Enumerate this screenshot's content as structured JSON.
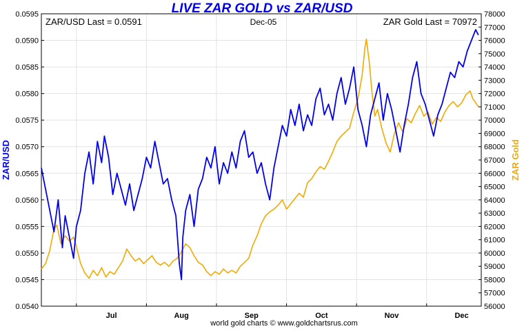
{
  "chart_data": {
    "type": "line",
    "title": "LIVE ZAR GOLD vs ZAR/USD",
    "footer": "world gold charts © www.goldchartsrus.com",
    "annotations": {
      "left": "ZAR/USD Last = 0.0591",
      "center": "Dec-05",
      "right": "ZAR Gold Last = 70972"
    },
    "x_ticks": [
      "Jul",
      "Aug",
      "Sep",
      "Oct",
      "Nov",
      "Dec"
    ],
    "x_tick_pos": [
      0.5,
      1.5,
      2.5,
      3.5,
      4.5,
      5.5
    ],
    "x_range": [
      -0.5,
      5.78
    ],
    "left_axis": {
      "label": "ZAR/USD",
      "color": "#0000ee",
      "range": [
        0.054,
        0.0595
      ],
      "ticks": [
        "0.0540",
        "0.0545",
        "0.0550",
        "0.0555",
        "0.0560",
        "0.0565",
        "0.0570",
        "0.0575",
        "0.0580",
        "0.0585",
        "0.0590",
        "0.0595"
      ]
    },
    "right_axis": {
      "label": "ZAR Gold",
      "color": "#f5a800",
      "range": [
        56000,
        78000
      ],
      "ticks": [
        "56000",
        "57000",
        "58000",
        "59000",
        "60000",
        "61000",
        "62000",
        "63000",
        "64000",
        "65000",
        "66000",
        "67000",
        "68000",
        "69000",
        "70000",
        "71000",
        "72000",
        "73000",
        "74000",
        "75000",
        "76000",
        "77000",
        "78000"
      ]
    },
    "series": [
      {
        "name": "ZAR/USD",
        "axis": "left",
        "color": "#0000ee",
        "points": [
          [
            -0.5,
            0.0566
          ],
          [
            -0.44,
            0.0562
          ],
          [
            -0.38,
            0.0558
          ],
          [
            -0.32,
            0.0554
          ],
          [
            -0.26,
            0.056
          ],
          [
            -0.2,
            0.0551
          ],
          [
            -0.16,
            0.0557
          ],
          [
            -0.1,
            0.0553
          ],
          [
            -0.04,
            0.0549
          ],
          [
            0.0,
            0.0555
          ],
          [
            0.06,
            0.0558
          ],
          [
            0.12,
            0.0565
          ],
          [
            0.18,
            0.0569
          ],
          [
            0.24,
            0.0563
          ],
          [
            0.3,
            0.0571
          ],
          [
            0.36,
            0.0567
          ],
          [
            0.4,
            0.0572
          ],
          [
            0.46,
            0.0568
          ],
          [
            0.52,
            0.0561
          ],
          [
            0.58,
            0.0565
          ],
          [
            0.64,
            0.0562
          ],
          [
            0.7,
            0.0559
          ],
          [
            0.76,
            0.0563
          ],
          [
            0.82,
            0.0558
          ],
          [
            0.88,
            0.0561
          ],
          [
            0.94,
            0.0564
          ],
          [
            1.0,
            0.0568
          ],
          [
            1.06,
            0.0566
          ],
          [
            1.12,
            0.0571
          ],
          [
            1.18,
            0.0567
          ],
          [
            1.24,
            0.0563
          ],
          [
            1.3,
            0.0564
          ],
          [
            1.36,
            0.056
          ],
          [
            1.42,
            0.0557
          ],
          [
            1.47,
            0.0548
          ],
          [
            1.5,
            0.0545
          ],
          [
            1.52,
            0.0553
          ],
          [
            1.56,
            0.0558
          ],
          [
            1.62,
            0.0561
          ],
          [
            1.68,
            0.0555
          ],
          [
            1.74,
            0.0562
          ],
          [
            1.8,
            0.0564
          ],
          [
            1.86,
            0.0568
          ],
          [
            1.92,
            0.0566
          ],
          [
            1.98,
            0.057
          ],
          [
            2.04,
            0.0563
          ],
          [
            2.1,
            0.0567
          ],
          [
            2.16,
            0.0565
          ],
          [
            2.22,
            0.0569
          ],
          [
            2.28,
            0.0566
          ],
          [
            2.34,
            0.0571
          ],
          [
            2.4,
            0.0573
          ],
          [
            2.46,
            0.0568
          ],
          [
            2.52,
            0.0569
          ],
          [
            2.58,
            0.0565
          ],
          [
            2.64,
            0.0567
          ],
          [
            2.7,
            0.0563
          ],
          [
            2.76,
            0.056
          ],
          [
            2.82,
            0.0566
          ],
          [
            2.88,
            0.057
          ],
          [
            2.94,
            0.0574
          ],
          [
            3.0,
            0.0572
          ],
          [
            3.06,
            0.0577
          ],
          [
            3.12,
            0.0574
          ],
          [
            3.18,
            0.0578
          ],
          [
            3.24,
            0.0573
          ],
          [
            3.3,
            0.0576
          ],
          [
            3.36,
            0.0574
          ],
          [
            3.42,
            0.0579
          ],
          [
            3.48,
            0.0581
          ],
          [
            3.54,
            0.0576
          ],
          [
            3.6,
            0.0578
          ],
          [
            3.66,
            0.0575
          ],
          [
            3.72,
            0.058
          ],
          [
            3.78,
            0.0583
          ],
          [
            3.84,
            0.0578
          ],
          [
            3.9,
            0.0581
          ],
          [
            3.96,
            0.0585
          ],
          [
            4.02,
            0.0577
          ],
          [
            4.08,
            0.0574
          ],
          [
            4.14,
            0.057
          ],
          [
            4.2,
            0.0576
          ],
          [
            4.26,
            0.0579
          ],
          [
            4.32,
            0.0582
          ],
          [
            4.38,
            0.0575
          ],
          [
            4.44,
            0.058
          ],
          [
            4.5,
            0.0577
          ],
          [
            4.56,
            0.0573
          ],
          [
            4.62,
            0.0569
          ],
          [
            4.68,
            0.0574
          ],
          [
            4.74,
            0.0578
          ],
          [
            4.8,
            0.0583
          ],
          [
            4.86,
            0.0586
          ],
          [
            4.92,
            0.058
          ],
          [
            4.98,
            0.0578
          ],
          [
            5.04,
            0.0575
          ],
          [
            5.1,
            0.0572
          ],
          [
            5.16,
            0.0576
          ],
          [
            5.22,
            0.0578
          ],
          [
            5.28,
            0.0581
          ],
          [
            5.34,
            0.0584
          ],
          [
            5.4,
            0.0583
          ],
          [
            5.46,
            0.0586
          ],
          [
            5.52,
            0.0585
          ],
          [
            5.58,
            0.0588
          ],
          [
            5.64,
            0.059
          ],
          [
            5.7,
            0.0592
          ],
          [
            5.74,
            0.0591
          ]
        ]
      },
      {
        "name": "ZAR Gold",
        "axis": "right",
        "color": "#f5a800",
        "points": [
          [
            -0.5,
            58800
          ],
          [
            -0.44,
            59200
          ],
          [
            -0.38,
            60200
          ],
          [
            -0.32,
            61800
          ],
          [
            -0.28,
            62100
          ],
          [
            -0.22,
            60700
          ],
          [
            -0.16,
            61300
          ],
          [
            -0.1,
            60900
          ],
          [
            -0.04,
            61200
          ],
          [
            0.0,
            60500
          ],
          [
            0.06,
            59200
          ],
          [
            0.12,
            58500
          ],
          [
            0.18,
            58100
          ],
          [
            0.24,
            58700
          ],
          [
            0.3,
            58300
          ],
          [
            0.36,
            58900
          ],
          [
            0.42,
            58200
          ],
          [
            0.48,
            58600
          ],
          [
            0.54,
            58400
          ],
          [
            0.6,
            58900
          ],
          [
            0.66,
            59400
          ],
          [
            0.72,
            60300
          ],
          [
            0.78,
            59800
          ],
          [
            0.84,
            59400
          ],
          [
            0.9,
            59600
          ],
          [
            0.96,
            59200
          ],
          [
            1.02,
            59500
          ],
          [
            1.08,
            59800
          ],
          [
            1.14,
            59300
          ],
          [
            1.2,
            59100
          ],
          [
            1.26,
            59300
          ],
          [
            1.32,
            59000
          ],
          [
            1.38,
            59400
          ],
          [
            1.44,
            59600
          ],
          [
            1.5,
            60100
          ],
          [
            1.56,
            60700
          ],
          [
            1.62,
            60400
          ],
          [
            1.68,
            59800
          ],
          [
            1.74,
            59300
          ],
          [
            1.8,
            59100
          ],
          [
            1.86,
            58600
          ],
          [
            1.92,
            58300
          ],
          [
            1.98,
            58600
          ],
          [
            2.04,
            58400
          ],
          [
            2.1,
            58800
          ],
          [
            2.16,
            58500
          ],
          [
            2.22,
            58700
          ],
          [
            2.28,
            58500
          ],
          [
            2.34,
            59000
          ],
          [
            2.4,
            59300
          ],
          [
            2.46,
            59600
          ],
          [
            2.52,
            60600
          ],
          [
            2.58,
            61300
          ],
          [
            2.64,
            62200
          ],
          [
            2.7,
            62800
          ],
          [
            2.76,
            63100
          ],
          [
            2.82,
            63300
          ],
          [
            2.88,
            63600
          ],
          [
            2.94,
            64000
          ],
          [
            3.0,
            63300
          ],
          [
            3.06,
            63700
          ],
          [
            3.12,
            64100
          ],
          [
            3.18,
            64500
          ],
          [
            3.24,
            64200
          ],
          [
            3.3,
            65300
          ],
          [
            3.36,
            65600
          ],
          [
            3.42,
            66100
          ],
          [
            3.48,
            66500
          ],
          [
            3.54,
            66300
          ],
          [
            3.6,
            66900
          ],
          [
            3.66,
            67600
          ],
          [
            3.72,
            68400
          ],
          [
            3.78,
            68800
          ],
          [
            3.84,
            69100
          ],
          [
            3.9,
            69400
          ],
          [
            3.96,
            70600
          ],
          [
            4.02,
            71600
          ],
          [
            4.08,
            73400
          ],
          [
            4.12,
            75500
          ],
          [
            4.14,
            76100
          ],
          [
            4.18,
            74400
          ],
          [
            4.22,
            72100
          ],
          [
            4.26,
            70300
          ],
          [
            4.3,
            70800
          ],
          [
            4.36,
            69400
          ],
          [
            4.42,
            68300
          ],
          [
            4.48,
            67600
          ],
          [
            4.54,
            69000
          ],
          [
            4.6,
            69800
          ],
          [
            4.66,
            69100
          ],
          [
            4.72,
            70100
          ],
          [
            4.78,
            69800
          ],
          [
            4.84,
            70500
          ],
          [
            4.9,
            71100
          ],
          [
            4.96,
            70300
          ],
          [
            5.02,
            70600
          ],
          [
            5.08,
            69700
          ],
          [
            5.14,
            70200
          ],
          [
            5.2,
            69900
          ],
          [
            5.26,
            70600
          ],
          [
            5.32,
            71100
          ],
          [
            5.38,
            71400
          ],
          [
            5.44,
            71000
          ],
          [
            5.5,
            71300
          ],
          [
            5.56,
            71900
          ],
          [
            5.62,
            72200
          ],
          [
            5.66,
            71600
          ],
          [
            5.7,
            71300
          ],
          [
            5.74,
            71000
          ]
        ]
      }
    ]
  }
}
